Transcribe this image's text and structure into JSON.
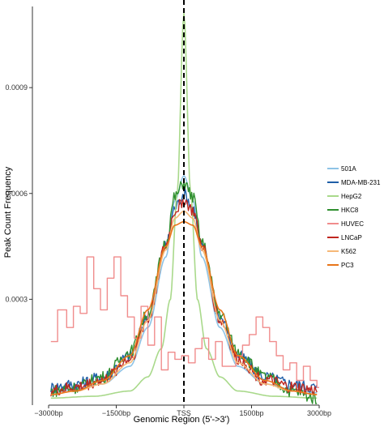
{
  "chart_data": {
    "type": "line",
    "xlabel": "Genomic Region (5'->3')",
    "ylabel": "Peak Count Frequency",
    "xlim": [
      -3000,
      3000
    ],
    "ylim": [
      0,
      0.00113
    ],
    "x_ticks": [
      {
        "value": -3000,
        "label": "−3000bp"
      },
      {
        "value": -1500,
        "label": "−1500bp"
      },
      {
        "value": 0,
        "label": "TSS"
      },
      {
        "value": 1500,
        "label": "1500bp"
      },
      {
        "value": 3000,
        "label": "3000bp"
      }
    ],
    "y_ticks": [
      {
        "value": 0.0003,
        "label": "0.0003"
      },
      {
        "value": 0.0006,
        "label": "0.0006"
      },
      {
        "value": 0.0009,
        "label": "0.0009"
      }
    ],
    "tss_line": 0,
    "grid": false,
    "legend_position": "right",
    "series": [
      {
        "name": "501A",
        "color": "#8ec3e6",
        "style": "smooth",
        "x": [
          -2950,
          -2400,
          -1800,
          -1200,
          -800,
          -400,
          -200,
          0,
          200,
          400,
          800,
          1200,
          1800,
          2400,
          2950
        ],
        "y": [
          3.5e-05,
          4.5e-05,
          6e-05,
          0.00011,
          0.00022,
          0.00042,
          0.00058,
          0.00065,
          0.00058,
          0.00042,
          0.00022,
          0.00011,
          6e-05,
          4.5e-05,
          3.5e-05
        ]
      },
      {
        "name": "MDA-MB-231",
        "color": "#1f5fa8",
        "style": "noisy",
        "x": [
          -2950,
          -2400,
          -1800,
          -1200,
          -800,
          -400,
          -200,
          0,
          200,
          400,
          800,
          1200,
          1800,
          2400,
          2950
        ],
        "y": [
          5e-05,
          6e-05,
          8e-05,
          0.00014,
          0.00025,
          0.00045,
          0.00056,
          0.0006,
          0.00056,
          0.00045,
          0.00025,
          0.00014,
          8e-05,
          6e-05,
          5e-05
        ]
      },
      {
        "name": "HepG2",
        "color": "#a9d98b",
        "style": "smooth",
        "x": [
          -2950,
          -2000,
          -1200,
          -800,
          -500,
          -300,
          -150,
          0,
          150,
          300,
          500,
          800,
          1200,
          2000,
          2950
        ],
        "y": [
          2e-05,
          2.5e-05,
          4e-05,
          8e-05,
          0.00016,
          0.0003,
          0.0006,
          0.00111,
          0.0006,
          0.0003,
          0.00016,
          8e-05,
          4e-05,
          2.5e-05,
          2e-05
        ]
      },
      {
        "name": "HKC8",
        "color": "#2f8f2f",
        "style": "noisy",
        "x": [
          -2950,
          -2400,
          -1800,
          -1200,
          -800,
          -400,
          -200,
          0,
          200,
          400,
          800,
          1200,
          1800,
          2400,
          2950
        ],
        "y": [
          4e-05,
          5e-05,
          8e-05,
          0.00015,
          0.00026,
          0.00046,
          0.00059,
          0.00063,
          0.00059,
          0.00046,
          0.00026,
          0.00015,
          8e-05,
          4e-05,
          2e-05
        ]
      },
      {
        "name": "HUVEC",
        "color": "#f08c8c",
        "style": "step",
        "x": [
          -2950,
          -2800,
          -2600,
          -2450,
          -2300,
          -2150,
          -2000,
          -1850,
          -1700,
          -1550,
          -1400,
          -1250,
          -1100,
          -950,
          -800,
          -650,
          -500,
          -350,
          -200,
          -50,
          100,
          250,
          400,
          550,
          700,
          850,
          1000,
          1150,
          1300,
          1450,
          1600,
          1750,
          1900,
          2050,
          2200,
          2350,
          2500,
          2650,
          2800,
          2950
        ],
        "y": [
          0.00018,
          0.00027,
          0.00022,
          0.00028,
          0.00026,
          0.00042,
          0.00033,
          0.00027,
          0.00036,
          0.00042,
          0.00031,
          0.00025,
          0.00019,
          0.00028,
          0.00017,
          0.00025,
          0.0001,
          0.00015,
          0.00013,
          0.00014,
          0.00012,
          0.00016,
          0.00019,
          0.00013,
          0.00018,
          0.00011,
          0.00011,
          0.00014,
          0.00017,
          0.0002,
          0.00025,
          0.00022,
          0.00018,
          0.00014,
          0.0001,
          0.00012,
          7e-05,
          0.00011,
          7e-05,
          5e-05
        ]
      },
      {
        "name": "LNCaP",
        "color": "#c0261f",
        "style": "noisy",
        "x": [
          -2950,
          -2400,
          -1800,
          -1200,
          -800,
          -400,
          -200,
          0,
          200,
          400,
          800,
          1200,
          1800,
          2400,
          2950
        ],
        "y": [
          4e-05,
          5e-05,
          7e-05,
          0.00013,
          0.00024,
          0.00045,
          0.00055,
          0.00058,
          0.00055,
          0.00045,
          0.00024,
          0.00013,
          7e-05,
          5e-05,
          4e-05
        ]
      },
      {
        "name": "K562",
        "color": "#f6b877",
        "style": "smooth",
        "x": [
          -2950,
          -2400,
          -1800,
          -1200,
          -800,
          -400,
          -200,
          0,
          200,
          400,
          800,
          1200,
          1800,
          2400,
          2950
        ],
        "y": [
          3e-05,
          4e-05,
          6e-05,
          0.00012,
          0.00024,
          0.00044,
          0.00053,
          0.00055,
          0.00053,
          0.00044,
          0.00024,
          0.00012,
          6e-05,
          4e-05,
          3e-05
        ]
      },
      {
        "name": "PC3",
        "color": "#e8751a",
        "style": "smooth",
        "x": [
          -2950,
          -2400,
          -1800,
          -1200,
          -800,
          -400,
          -200,
          0,
          200,
          400,
          800,
          1200,
          1800,
          2400,
          2950
        ],
        "y": [
          3e-05,
          4e-05,
          7e-05,
          0.00014,
          0.00027,
          0.00045,
          0.00051,
          0.00052,
          0.00051,
          0.00045,
          0.00027,
          0.00014,
          7e-05,
          4e-05,
          3e-05
        ]
      }
    ]
  }
}
